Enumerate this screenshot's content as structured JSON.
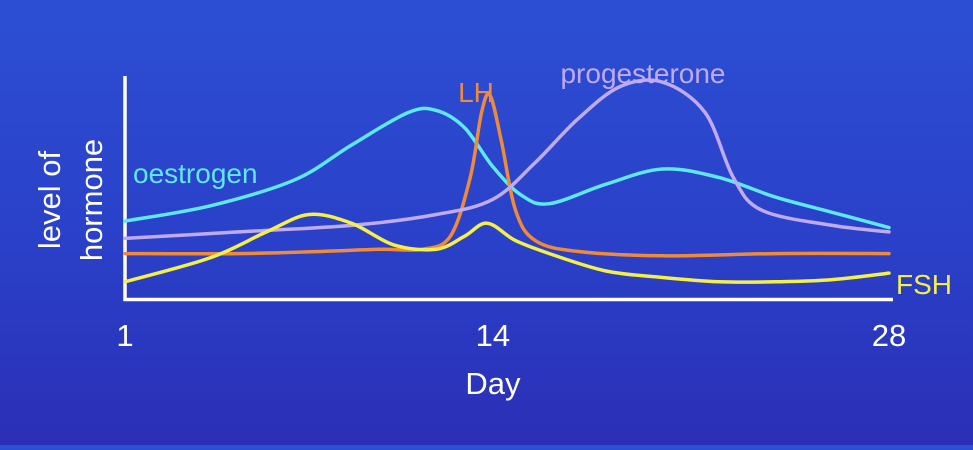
{
  "chart_data": {
    "type": "line",
    "title": "",
    "xlabel": "Day",
    "ylabel_lines": [
      "level of",
      "hormone"
    ],
    "x_ticks": [
      1,
      14,
      28
    ],
    "xlim": [
      1,
      28
    ],
    "ylim": [
      0,
      1
    ],
    "grid": false,
    "legend": "inline labels",
    "series": [
      {
        "name": "oestrogen",
        "color": "#5ee8f2",
        "points": [
          [
            1,
            0.35
          ],
          [
            4,
            0.42
          ],
          [
            7,
            0.54
          ],
          [
            9,
            0.7
          ],
          [
            11,
            0.85
          ],
          [
            12,
            0.86
          ],
          [
            13,
            0.78
          ],
          [
            14,
            0.6
          ],
          [
            15,
            0.47
          ],
          [
            16,
            0.43
          ],
          [
            18,
            0.52
          ],
          [
            20,
            0.59
          ],
          [
            22,
            0.55
          ],
          [
            24,
            0.46
          ],
          [
            26,
            0.39
          ],
          [
            28,
            0.32
          ]
        ]
      },
      {
        "name": "LH",
        "color": "#ee8a3a",
        "points": [
          [
            1,
            0.2
          ],
          [
            5,
            0.2
          ],
          [
            8,
            0.21
          ],
          [
            10,
            0.22
          ],
          [
            11.5,
            0.22
          ],
          [
            12.5,
            0.28
          ],
          [
            13.2,
            0.55
          ],
          [
            13.6,
            0.85
          ],
          [
            13.9,
            0.93
          ],
          [
            14.3,
            0.72
          ],
          [
            14.8,
            0.4
          ],
          [
            15.5,
            0.26
          ],
          [
            17,
            0.21
          ],
          [
            20,
            0.19
          ],
          [
            24,
            0.2
          ],
          [
            28,
            0.2
          ]
        ]
      },
      {
        "name": "progesterone",
        "color": "#c0aaf0",
        "points": [
          [
            1,
            0.27
          ],
          [
            5,
            0.3
          ],
          [
            9,
            0.33
          ],
          [
            12,
            0.38
          ],
          [
            14,
            0.45
          ],
          [
            15.5,
            0.62
          ],
          [
            17,
            0.82
          ],
          [
            18.5,
            0.97
          ],
          [
            20,
            0.99
          ],
          [
            21.5,
            0.85
          ],
          [
            22.5,
            0.55
          ],
          [
            23.5,
            0.4
          ],
          [
            26,
            0.33
          ],
          [
            28,
            0.3
          ]
        ]
      },
      {
        "name": "FSH",
        "color": "#f4f046",
        "points": [
          [
            1,
            0.07
          ],
          [
            4,
            0.18
          ],
          [
            6,
            0.3
          ],
          [
            7.5,
            0.38
          ],
          [
            9,
            0.34
          ],
          [
            10.5,
            0.24
          ],
          [
            12,
            0.22
          ],
          [
            13,
            0.28
          ],
          [
            13.8,
            0.34
          ],
          [
            14.8,
            0.26
          ],
          [
            16,
            0.2
          ],
          [
            18,
            0.12
          ],
          [
            20,
            0.09
          ],
          [
            22,
            0.07
          ],
          [
            24,
            0.07
          ],
          [
            26,
            0.08
          ],
          [
            28,
            0.11
          ]
        ]
      }
    ]
  }
}
